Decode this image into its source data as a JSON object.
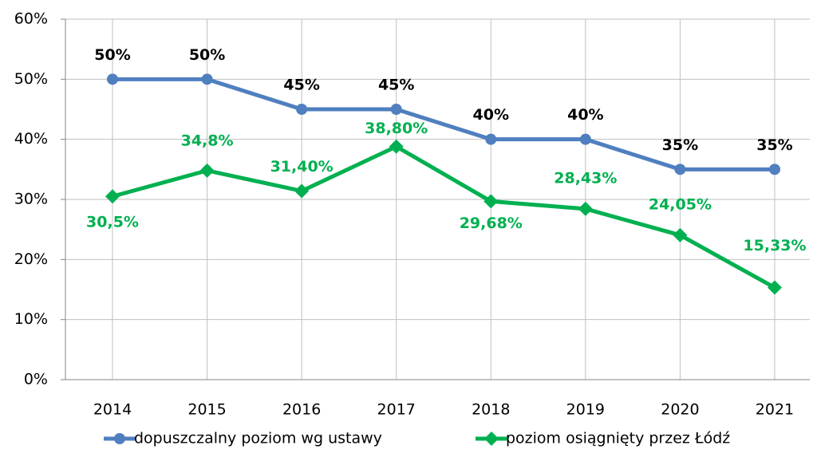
{
  "chart_data": {
    "type": "line",
    "categories": [
      "2014",
      "2015",
      "2016",
      "2017",
      "2018",
      "2019",
      "2020",
      "2021"
    ],
    "series": [
      {
        "name": "dopuszczalny poziom wg ustawy",
        "color": "#4f7fbf",
        "marker": "circle",
        "values": [
          50,
          50,
          45,
          45,
          40,
          40,
          35,
          35
        ],
        "value_labels": [
          "50%",
          "50%",
          "45%",
          "45%",
          "40%",
          "40%",
          "35%",
          "35%"
        ],
        "label_color": "#000000"
      },
      {
        "name": "poziom osiągnięty przez Łódź",
        "color": "#00b050",
        "marker": "diamond",
        "values": [
          30.5,
          34.8,
          31.4,
          38.8,
          29.68,
          28.43,
          24.05,
          15.33
        ],
        "value_labels": [
          "30,5%",
          "34,8%",
          "31,40%",
          "38,80%",
          "29,68%",
          "28,43%",
          "24,05%",
          "15,33%"
        ],
        "label_color": "#00b050"
      }
    ],
    "ylim": [
      0,
      60
    ],
    "yticks": [
      {
        "value": 0,
        "label": "0%"
      },
      {
        "value": 10,
        "label": "10%"
      },
      {
        "value": 20,
        "label": "20%"
      },
      {
        "value": 30,
        "label": "30%"
      },
      {
        "value": 40,
        "label": "40%"
      },
      {
        "value": 50,
        "label": "50%"
      },
      {
        "value": 60,
        "label": "60%"
      }
    ],
    "grid": true,
    "legend": "bottom"
  }
}
